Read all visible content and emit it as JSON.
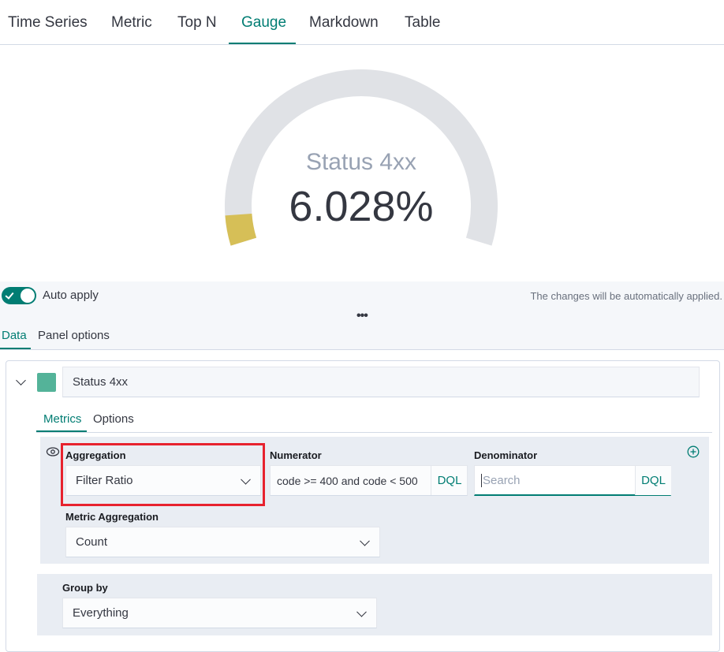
{
  "tabs": [
    "Time Series",
    "Metric",
    "Top N",
    "Gauge",
    "Markdown",
    "Table"
  ],
  "gauge": {
    "label": "Status 4xx",
    "value": 6.028,
    "value_label": "6.028%"
  },
  "auto_apply": {
    "label": "Auto apply",
    "note": "The changes will be automatically applied."
  },
  "editor_tabs": [
    "Data",
    "Panel options"
  ],
  "series": {
    "label": "Status 4xx",
    "sub_tabs": [
      "Metrics",
      "Options"
    ],
    "aggregation": {
      "label": "Aggregation",
      "value": "Filter Ratio"
    },
    "numerator": {
      "label": "Numerator",
      "value": "code >= 400 and code < 500",
      "language": "DQL"
    },
    "denominator": {
      "label": "Denominator",
      "placeholder": "Search",
      "language": "DQL"
    },
    "metric_aggregation": {
      "label": "Metric Aggregation",
      "value": "Count"
    },
    "group_by": {
      "label": "Group by",
      "value": "Everything"
    }
  }
}
